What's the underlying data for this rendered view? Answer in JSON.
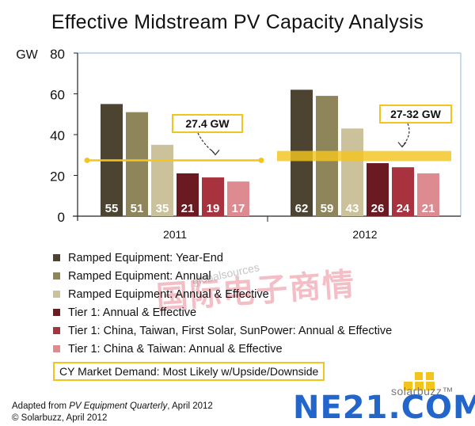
{
  "title": "Effective Midstream PV Capacity Analysis",
  "chart_data": {
    "type": "bar",
    "title": "Effective Midstream PV Capacity Analysis",
    "ylabel": "GW",
    "ylim": [
      0,
      80
    ],
    "yticks": [
      0,
      20,
      40,
      60,
      80
    ],
    "categories": [
      "2011",
      "2012"
    ],
    "series": [
      {
        "name": "Ramped Equipment: Year-End",
        "color": "#4c4331",
        "values": [
          55,
          62
        ]
      },
      {
        "name": "Ramped Equipment: Annual",
        "color": "#8e855a",
        "values": [
          51,
          59
        ]
      },
      {
        "name": "Ramped Equipment: Annual & Effective",
        "color": "#cbc29c",
        "values": [
          35,
          43
        ]
      },
      {
        "name": "Tier 1: Annual & Effective",
        "color": "#6b1a22",
        "values": [
          21,
          26
        ]
      },
      {
        "name": "Tier 1: China, Taiwan, First Solar, SunPower: Annual & Effective",
        "color": "#a8333f",
        "values": [
          19,
          24
        ]
      },
      {
        "name": "Tier 1: China & Taiwan: Annual & Effective",
        "color": "#dd8a90",
        "values": [
          17,
          21
        ]
      }
    ],
    "demand": {
      "label": "CY Market Demand: Most Likely w/Upside/Downside",
      "color": "#f3c41e",
      "year_2011": {
        "value": 27.4,
        "label": "27.4 GW"
      },
      "year_2012": {
        "low": 27,
        "high": 32,
        "label": "27-32 GW"
      }
    }
  },
  "credits": {
    "line1_prefix": "Adapted from ",
    "line1_italic": "PV Equipment Quarterly",
    "line1_suffix": ", April 2012",
    "line2": "© Solarbuzz, April 2012"
  },
  "branding": {
    "solarbuzz": "solarbuzz™",
    "ne21": "NE21.COM",
    "watermark_cn": "国际电子商情",
    "watermark_small": "globalsources"
  }
}
